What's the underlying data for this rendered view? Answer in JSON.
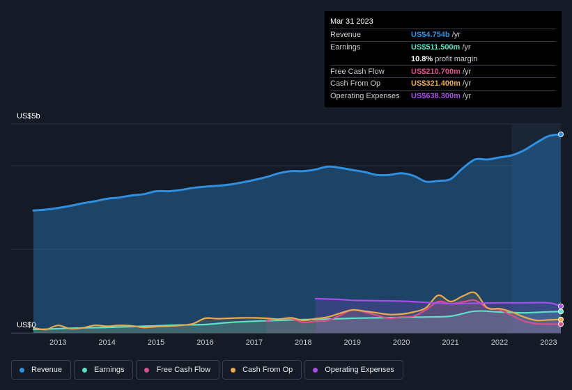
{
  "chart_data": {
    "type": "area",
    "y_axis_top_label": "US$5b",
    "y_axis_bottom_label": "US$0",
    "ylim": [
      0,
      5
    ],
    "xlim": [
      2012.5,
      2023.25
    ],
    "x_ticks": [
      "2013",
      "2014",
      "2015",
      "2016",
      "2017",
      "2018",
      "2019",
      "2020",
      "2021",
      "2022",
      "2023"
    ],
    "x_tick_values": [
      2013,
      2014,
      2015,
      2016,
      2017,
      2018,
      2019,
      2020,
      2021,
      2022,
      2023
    ],
    "forecast_start": 2022.25,
    "series": [
      {
        "name": "Revenue",
        "color": "#2f8fe0",
        "x": [
          2012.5,
          2012.75,
          2013.0,
          2013.25,
          2013.5,
          2013.75,
          2014.0,
          2014.25,
          2014.5,
          2014.75,
          2015.0,
          2015.25,
          2015.5,
          2015.75,
          2016.0,
          2016.25,
          2016.5,
          2016.75,
          2017.0,
          2017.25,
          2017.5,
          2017.75,
          2018.0,
          2018.25,
          2018.5,
          2018.75,
          2019.0,
          2019.25,
          2019.5,
          2019.75,
          2020.0,
          2020.25,
          2020.5,
          2020.75,
          2021.0,
          2021.25,
          2021.5,
          2021.75,
          2022.0,
          2022.25,
          2022.5,
          2022.75,
          2023.0,
          2023.25
        ],
        "values": [
          2.93,
          2.95,
          2.99,
          3.04,
          3.1,
          3.15,
          3.21,
          3.24,
          3.29,
          3.32,
          3.39,
          3.39,
          3.42,
          3.47,
          3.5,
          3.52,
          3.55,
          3.6,
          3.66,
          3.73,
          3.82,
          3.87,
          3.87,
          3.91,
          3.98,
          3.95,
          3.9,
          3.85,
          3.78,
          3.78,
          3.82,
          3.76,
          3.62,
          3.64,
          3.68,
          3.94,
          4.15,
          4.15,
          4.2,
          4.25,
          4.37,
          4.55,
          4.71,
          4.754
        ]
      },
      {
        "name": "Earnings",
        "color": "#5ce0c6",
        "x": [
          2012.5,
          2013.0,
          2013.5,
          2014.0,
          2014.5,
          2015.0,
          2015.5,
          2016.0,
          2016.5,
          2017.0,
          2017.5,
          2018.0,
          2018.5,
          2019.0,
          2019.5,
          2020.0,
          2020.5,
          2021.0,
          2021.5,
          2022.0,
          2022.5,
          2023.0,
          2023.25
        ],
        "values": [
          0.08,
          0.1,
          0.12,
          0.13,
          0.15,
          0.17,
          0.19,
          0.2,
          0.25,
          0.28,
          0.3,
          0.32,
          0.33,
          0.35,
          0.36,
          0.37,
          0.38,
          0.4,
          0.52,
          0.5,
          0.48,
          0.505,
          0.5115
        ]
      },
      {
        "name": "Free Cash Flow",
        "color": "#d94f8a",
        "x": [
          2017.25,
          2017.5,
          2017.75,
          2018.0,
          2018.25,
          2018.5,
          2018.75,
          2019.0,
          2019.25,
          2019.5,
          2019.75,
          2020.0,
          2020.25,
          2020.5,
          2020.75,
          2021.0,
          2021.25,
          2021.5,
          2021.75,
          2022.0,
          2022.25,
          2022.5,
          2022.75,
          2023.0,
          2023.25
        ],
        "values": [
          0.3,
          0.33,
          0.34,
          0.25,
          0.28,
          0.3,
          0.42,
          0.55,
          0.5,
          0.42,
          0.35,
          0.38,
          0.4,
          0.55,
          0.75,
          0.7,
          0.74,
          0.78,
          0.6,
          0.55,
          0.42,
          0.28,
          0.22,
          0.21,
          0.2107
        ]
      },
      {
        "name": "Cash From Op",
        "color": "#e8a94f",
        "x": [
          2012.5,
          2012.75,
          2013.0,
          2013.25,
          2013.5,
          2013.75,
          2014.0,
          2014.25,
          2014.5,
          2014.75,
          2015.0,
          2015.25,
          2015.5,
          2015.75,
          2016.0,
          2016.25,
          2016.5,
          2016.75,
          2017.0,
          2017.25,
          2017.5,
          2017.75,
          2018.0,
          2018.25,
          2018.5,
          2018.75,
          2019.0,
          2019.25,
          2019.5,
          2019.75,
          2020.0,
          2020.25,
          2020.5,
          2020.75,
          2021.0,
          2021.25,
          2021.5,
          2021.75,
          2022.0,
          2022.25,
          2022.5,
          2022.75,
          2023.0,
          2023.25
        ],
        "values": [
          0.12,
          0.08,
          0.18,
          0.1,
          0.12,
          0.18,
          0.16,
          0.18,
          0.17,
          0.13,
          0.15,
          0.16,
          0.18,
          0.22,
          0.35,
          0.34,
          0.35,
          0.36,
          0.36,
          0.35,
          0.33,
          0.36,
          0.3,
          0.34,
          0.38,
          0.47,
          0.55,
          0.52,
          0.48,
          0.44,
          0.45,
          0.5,
          0.6,
          0.9,
          0.75,
          0.88,
          0.96,
          0.6,
          0.58,
          0.5,
          0.38,
          0.3,
          0.31,
          0.3214
        ]
      },
      {
        "name": "Operating Expenses",
        "color": "#a74de8",
        "x": [
          2018.25,
          2018.75,
          2019.0,
          2019.5,
          2020.0,
          2020.5,
          2021.0,
          2021.5,
          2022.0,
          2022.5,
          2023.0,
          2023.25
        ],
        "values": [
          0.82,
          0.8,
          0.78,
          0.77,
          0.76,
          0.73,
          0.7,
          0.71,
          0.72,
          0.72,
          0.72,
          0.6383
        ]
      }
    ]
  },
  "tooltip": {
    "date": "Mar 31 2023",
    "rows": [
      {
        "label": "Revenue",
        "value": "US$4.754b",
        "unit": "/yr",
        "color": "#2f8fe0"
      },
      {
        "label": "Earnings",
        "value": "US$511.500m",
        "unit": "/yr",
        "color": "#5ce0c6"
      },
      {
        "label": "",
        "value": "10.8%",
        "unit": "profit margin",
        "color": "#ffffff"
      },
      {
        "label": "Free Cash Flow",
        "value": "US$210.700m",
        "unit": "/yr",
        "color": "#d94f8a"
      },
      {
        "label": "Cash From Op",
        "value": "US$321.400m",
        "unit": "/yr",
        "color": "#e8a94f"
      },
      {
        "label": "Operating Expenses",
        "value": "US$638.300m",
        "unit": "/yr",
        "color": "#a74de8"
      }
    ]
  },
  "legend": [
    {
      "label": "Revenue",
      "color": "#2f8fe0"
    },
    {
      "label": "Earnings",
      "color": "#5ce0c6"
    },
    {
      "label": "Free Cash Flow",
      "color": "#d94f8a"
    },
    {
      "label": "Cash From Op",
      "color": "#e8a94f"
    },
    {
      "label": "Operating Expenses",
      "color": "#a74de8"
    }
  ]
}
